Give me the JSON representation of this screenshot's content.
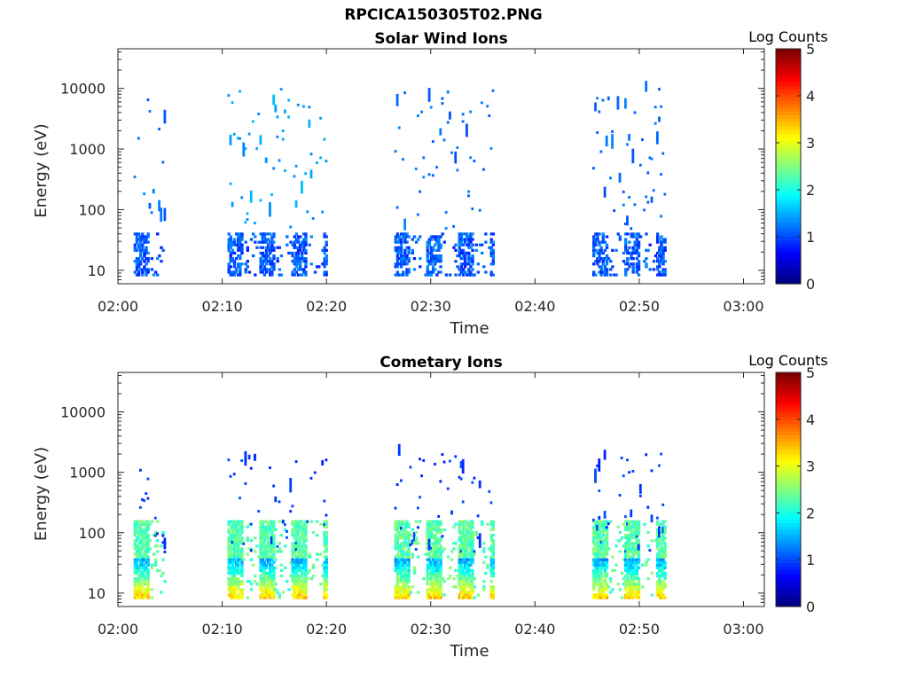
{
  "figure": {
    "title": "RPCICA150305T02.PNG"
  },
  "chart_data": [
    {
      "type": "heatmap",
      "title": "Solar Wind Ions",
      "xlabel": "Time",
      "ylabel": "Energy (eV)",
      "x_ticks": [
        "02:00",
        "02:10",
        "02:20",
        "02:30",
        "02:40",
        "02:50",
        "03:00"
      ],
      "x_range_minutes": [
        0,
        62
      ],
      "y_scale": "log",
      "y_ticks": [
        10,
        100,
        1000,
        10000
      ],
      "y_range": [
        6,
        45000
      ],
      "colorbar": {
        "label": "Log Counts",
        "ticks": [
          0,
          1,
          2,
          3,
          4,
          5
        ],
        "range": [
          0,
          5
        ],
        "colormap": "jet"
      },
      "bursts": [
        {
          "start_min": 1.5,
          "end_min": 4.5,
          "low_energy_level": 0.15,
          "high_energy_level": 0.2
        },
        {
          "start_min": 10.5,
          "end_min": 20.0,
          "low_energy_level": 0.15,
          "high_energy_level": 0.25
        },
        {
          "start_min": 26.5,
          "end_min": 36.0,
          "low_energy_level": 0.15,
          "high_energy_level": 0.2
        },
        {
          "start_min": 45.5,
          "end_min": 52.5,
          "low_energy_level": 0.15,
          "high_energy_level": 0.2
        }
      ]
    },
    {
      "type": "heatmap",
      "title": "Cometary Ions",
      "xlabel": "Time",
      "ylabel": "Energy (eV)",
      "x_ticks": [
        "02:00",
        "02:10",
        "02:20",
        "02:30",
        "02:40",
        "02:50",
        "03:00"
      ],
      "x_range_minutes": [
        0,
        62
      ],
      "y_scale": "log",
      "y_ticks": [
        10,
        100,
        1000,
        10000
      ],
      "y_range": [
        6,
        45000
      ],
      "colorbar": {
        "label": "Log Counts",
        "ticks": [
          0,
          1,
          2,
          3,
          4,
          5
        ],
        "range": [
          0,
          5
        ],
        "colormap": "jet"
      },
      "bursts": [
        {
          "start_min": 1.5,
          "end_min": 4.5,
          "low_energy_level": 0.4,
          "high_energy_level": 0.15
        },
        {
          "start_min": 10.5,
          "end_min": 20.0,
          "low_energy_level": 0.4,
          "high_energy_level": 0.15
        },
        {
          "start_min": 26.5,
          "end_min": 36.0,
          "low_energy_level": 0.4,
          "high_energy_level": 0.15
        },
        {
          "start_min": 45.5,
          "end_min": 52.5,
          "low_energy_level": 0.4,
          "high_energy_level": 0.15
        }
      ]
    }
  ]
}
